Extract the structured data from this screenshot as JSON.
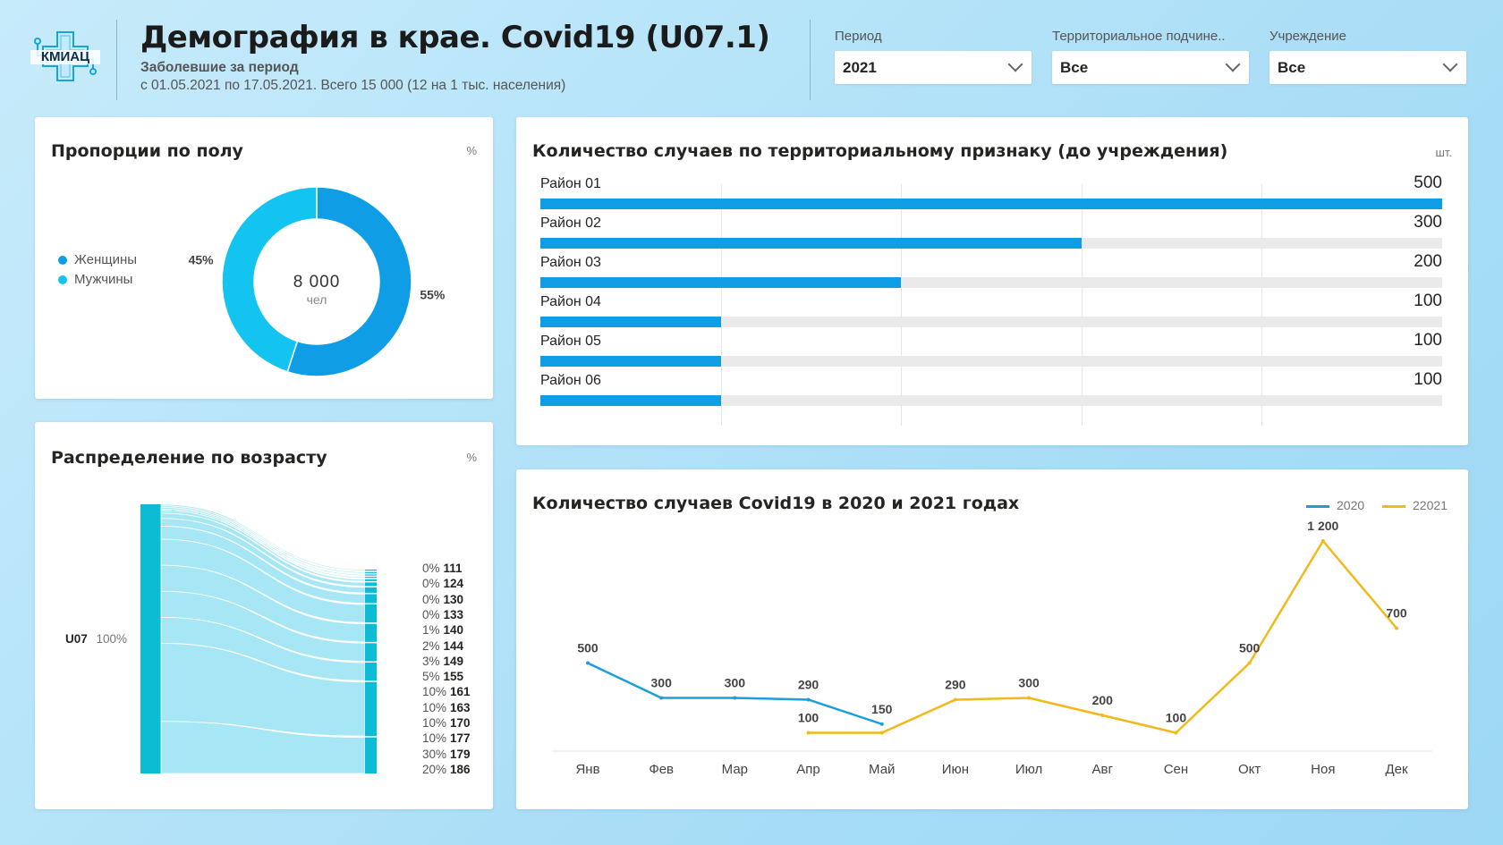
{
  "header": {
    "logo_text": "КМИАЦ",
    "title": "Демография в крае. Covid19 (U07.1)",
    "subtitle": "Заболевшие за период",
    "period_text": "с 01.05.2021 по 17.05.2021. Всего 15 000 (12 на 1 тыс. населения)"
  },
  "filters": [
    {
      "label": "Период",
      "value": "2021"
    },
    {
      "label": "Территориальное подчине..",
      "value": "Все"
    },
    {
      "label": "Учреждение",
      "value": "Все"
    }
  ],
  "gender": {
    "title": "Пропорции по полу",
    "unit": "%",
    "center_value": "8 000",
    "center_unit": "чел",
    "legend": [
      {
        "label": "Женщины",
        "color": "#0f9ee6"
      },
      {
        "label": "Мужчины",
        "color": "#13c4f0"
      }
    ],
    "chart_data": {
      "type": "pie",
      "series": [
        {
          "name": "Женщины",
          "value": 55,
          "label": "55%",
          "color": "#0f9ee6"
        },
        {
          "name": "Мужчины",
          "value": 45,
          "label": "45%",
          "color": "#13c4f0"
        }
      ]
    }
  },
  "districts": {
    "title": "Количество случаев по территориальному признаку (до учреждения)",
    "unit": "шт.",
    "chart_data": {
      "type": "bar",
      "categories": [
        "Район 01",
        "Район 02",
        "Район 03",
        "Район 04",
        "Район 05",
        "Район 06"
      ],
      "values": [
        500,
        300,
        200,
        100,
        100,
        100
      ],
      "xlim": [
        0,
        500
      ]
    }
  },
  "age": {
    "title": "Распределение по возрасту",
    "unit": "%",
    "source_label": "U07",
    "source_pct": "100%",
    "rows": [
      {
        "pct": "0%",
        "val": "111"
      },
      {
        "pct": "0%",
        "val": "124"
      },
      {
        "pct": "0%",
        "val": "130"
      },
      {
        "pct": "0%",
        "val": "133"
      },
      {
        "pct": "1%",
        "val": "140"
      },
      {
        "pct": "2%",
        "val": "144"
      },
      {
        "pct": "3%",
        "val": "149"
      },
      {
        "pct": "5%",
        "val": "155"
      },
      {
        "pct": "10%",
        "val": "161"
      },
      {
        "pct": "10%",
        "val": "163"
      },
      {
        "pct": "10%",
        "val": "170"
      },
      {
        "pct": "10%",
        "val": "177"
      },
      {
        "pct": "30%",
        "val": "179"
      },
      {
        "pct": "20%",
        "val": "186"
      }
    ]
  },
  "cases": {
    "title": "Количество случаев Covid19 в 2020 и 2021 годах",
    "chart_data": {
      "type": "line",
      "x": [
        "Янв",
        "Фев",
        "Мар",
        "Апр",
        "Май",
        "Июн",
        "Июл",
        "Авг",
        "Сен",
        "Окт",
        "Ноя",
        "Дек"
      ],
      "ylim": [
        0,
        1200
      ],
      "series": [
        {
          "name": "2020",
          "color": "#1a9fd9",
          "values": [
            500,
            300,
            300,
            290,
            150,
            null,
            null,
            null,
            null,
            null,
            null,
            null
          ],
          "labels": [
            "500",
            "300",
            "300",
            "290",
            "150",
            "",
            "",
            "",
            "",
            "",
            "",
            ""
          ]
        },
        {
          "name": "22021",
          "color": "#f2b91a",
          "values": [
            null,
            null,
            null,
            100,
            100,
            290,
            300,
            200,
            100,
            500,
            1200,
            700
          ],
          "labels": [
            "",
            "",
            "",
            "100",
            "",
            "290",
            "300",
            "200",
            "100",
            "500",
            "1 200",
            "700"
          ]
        }
      ]
    }
  }
}
